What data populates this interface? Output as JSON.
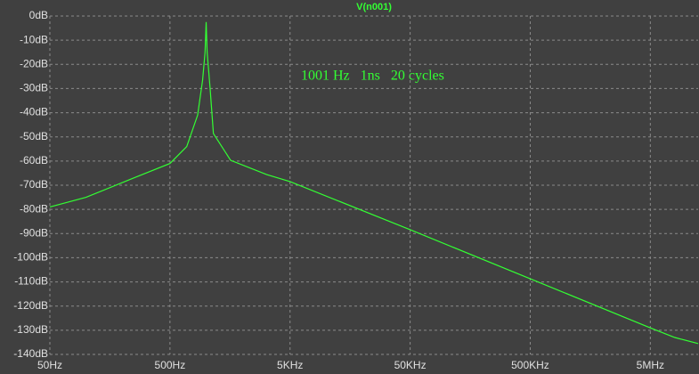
{
  "chart_data": {
    "type": "line",
    "title": "V(n001)",
    "annotation": "1001 Hz   1ns   20 cycles",
    "x": [
      50,
      100,
      250,
      500,
      690,
      850,
      935,
      980,
      1001,
      1020,
      1080,
      1150,
      1600,
      3200,
      5000,
      50000,
      500000,
      5000000,
      8000000,
      12500000
    ],
    "series": [
      {
        "name": "V(n001)",
        "color": "#33ff33",
        "values": [
          -79,
          -75,
          -67,
          -61,
          -54,
          -41,
          -26.5,
          -15,
          -2.5,
          -15,
          -30,
          -48.6,
          -59.7,
          -65.6,
          -68.5,
          -88.4,
          -108.7,
          -129,
          -133,
          -135.5
        ]
      }
    ],
    "xlim": [
      50,
      12500000
    ],
    "log_x": true,
    "xticks": [
      {
        "value": 50,
        "label": "50Hz"
      },
      {
        "value": 500,
        "label": "500Hz"
      },
      {
        "value": 5000,
        "label": "5KHz"
      },
      {
        "value": 50000,
        "label": "50KHz"
      },
      {
        "value": 500000,
        "label": "500KHz"
      },
      {
        "value": 5000000,
        "label": "5MHz"
      }
    ],
    "ylim": [
      -140,
      0
    ],
    "yticks": [
      {
        "value": 0,
        "label": "0dB"
      },
      {
        "value": -10,
        "label": "-10dB"
      },
      {
        "value": -20,
        "label": "-20dB"
      },
      {
        "value": -30,
        "label": "-30dB"
      },
      {
        "value": -40,
        "label": "-40dB"
      },
      {
        "value": -50,
        "label": "-50dB"
      },
      {
        "value": -60,
        "label": "-60dB"
      },
      {
        "value": -70,
        "label": "-70dB"
      },
      {
        "value": -80,
        "label": "-80dB"
      },
      {
        "value": -90,
        "label": "-90dB"
      },
      {
        "value": -100,
        "label": "-100dB"
      },
      {
        "value": -110,
        "label": "-110dB"
      },
      {
        "value": -120,
        "label": "-120dB"
      },
      {
        "value": -130,
        "label": "-130dB"
      },
      {
        "value": -140,
        "label": "-140dB"
      }
    ],
    "grid": true
  }
}
